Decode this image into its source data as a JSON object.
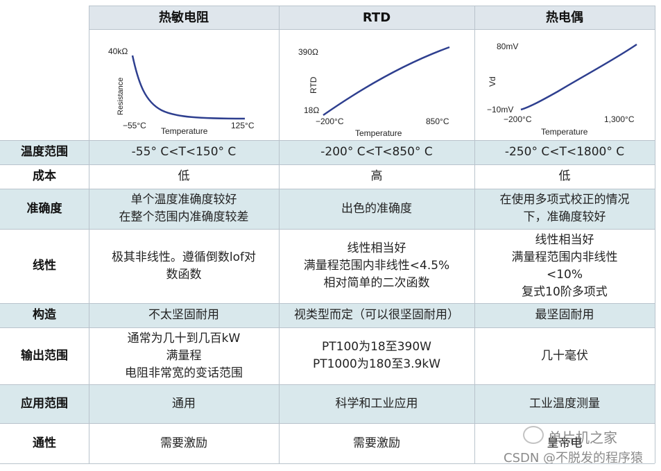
{
  "header": {
    "col1": "热敏电阻",
    "col2": "RTD",
    "col3": "热电偶"
  },
  "charts": {
    "thermistor": {
      "y_top": "40kΩ",
      "y_label": "Resistance",
      "x_left": "−55°C",
      "x_label": "Temperature",
      "x_right": "125°C",
      "color": "#2e3f8f"
    },
    "rtd": {
      "y_top": "390Ω",
      "y_label": "RTD",
      "y_bottom": "18Ω",
      "x_left": "−200°C",
      "x_label": "Temperature",
      "x_right": "850°C",
      "color": "#2e3f8f"
    },
    "thermocouple": {
      "y_top": "80mV",
      "y_label": "Vd",
      "y_bottom": "−10mV",
      "x_left": "−200°C",
      "x_label": "Temperature",
      "x_right": "1,300°C",
      "color": "#2e3f8f"
    }
  },
  "rows": [
    {
      "label": "温度范围",
      "c1": [
        "-55° C<T<150° C"
      ],
      "c2": [
        "-200° C<T<850° C"
      ],
      "c3": [
        "-250° C<T<1800° C"
      ]
    },
    {
      "label": "成本",
      "c1": [
        "低"
      ],
      "c2": [
        "高"
      ],
      "c3": [
        "低"
      ]
    },
    {
      "label": "准确度",
      "c1": [
        "单个温度准确度较好",
        "在整个范围内准确度较差"
      ],
      "c2": [
        "出色的准确度"
      ],
      "c3": [
        "在使用多项式校正的情况",
        "下，准确度较好"
      ]
    },
    {
      "label": "线性",
      "c1": [
        "极其非线性。遵循倒数lof对",
        "数函数"
      ],
      "c2": [
        "线性相当好",
        "满量程范围内非线性<4.5%",
        "相对简单的二次函数"
      ],
      "c3": [
        "线性相当好",
        "满量程范围内非线性",
        "<10%",
        "复式10阶多项式"
      ]
    },
    {
      "label": "构造",
      "c1": [
        "不太坚固耐用"
      ],
      "c2": [
        "视类型而定（可以很坚固耐用）"
      ],
      "c3": [
        "最坚固耐用"
      ]
    },
    {
      "label": "输出范围",
      "c1": [
        "通常为几十到几百kW",
        "满量程",
        "电阻非常宽的变话范围"
      ],
      "c2": [
        "PT100为18至390W",
        "PT1000为180至3.9kW"
      ],
      "c3": [
        "几十毫伏"
      ]
    },
    {
      "label": "应用范围",
      "c1": [
        "通用"
      ],
      "c2": [
        "科学和工业应用"
      ],
      "c3": [
        "工业温度测量"
      ]
    },
    {
      "label": "通性",
      "c1": [
        "需要激励"
      ],
      "c2": [
        "需要激励"
      ],
      "c3": [
        "皇帝电"
      ]
    }
  ],
  "watermark": {
    "line1": "单片机之家",
    "line2": "CSDN @不脱发的程序猿",
    "wechat_name": "单片机之家"
  },
  "colors": {
    "band": "#d9e8ec",
    "header_bg": "#dfe6ec",
    "curve": "#2e3f8f"
  }
}
